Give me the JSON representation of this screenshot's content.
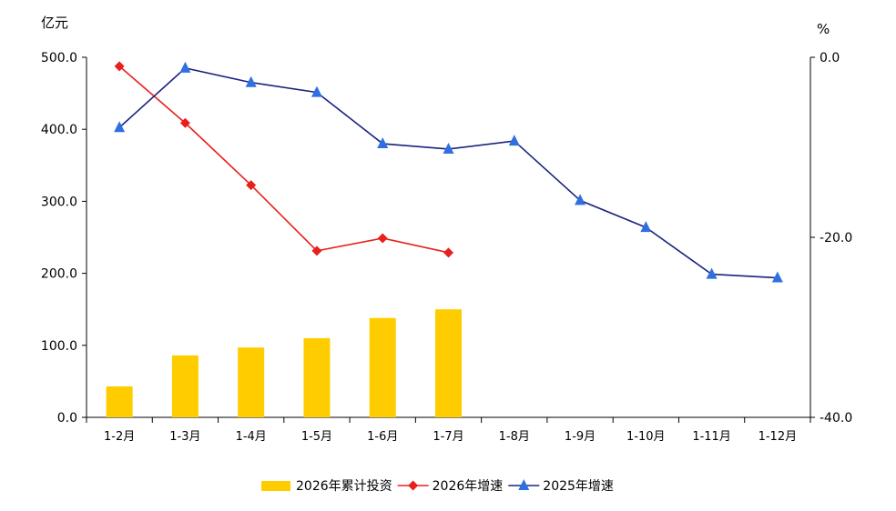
{
  "chart_data": {
    "type": "bar+line",
    "left_axis_unit": "亿元",
    "right_axis_unit": "%",
    "left_ylim": [
      0,
      500
    ],
    "right_ylim": [
      -40,
      0
    ],
    "left_ticks": [
      "0.0",
      "100.0",
      "200.0",
      "300.0",
      "400.0",
      "500.0"
    ],
    "left_tick_values": [
      0,
      100,
      200,
      300,
      400,
      500
    ],
    "right_ticks": [
      "-40.0",
      "-20.0",
      "0.0"
    ],
    "right_tick_values": [
      -40,
      -20,
      0
    ],
    "categories": [
      "1-2月",
      "1-3月",
      "1-4月",
      "1-5月",
      "1-6月",
      "1-7月",
      "1-8月",
      "1-9月",
      "1-10月",
      "1-11月",
      "1-12月"
    ],
    "series": [
      {
        "name": "2026年累计投资",
        "type": "bar",
        "axis": "left",
        "color": "#FFCC00",
        "values": [
          43,
          86,
          97,
          110,
          138,
          150,
          null,
          null,
          null,
          null,
          null
        ]
      },
      {
        "name": "2026年增速",
        "type": "line",
        "axis": "right",
        "color": "#E8201C",
        "marker": "diamond",
        "values": [
          -1.0,
          -7.3,
          -14.2,
          -21.5,
          -20.1,
          -21.7,
          null,
          null,
          null,
          null,
          null
        ]
      },
      {
        "name": "2025年增速",
        "type": "line",
        "axis": "right",
        "color": "#1A237E",
        "marker_color": "#2F6FE0",
        "marker": "triangle",
        "values": [
          -7.8,
          -1.2,
          -2.8,
          -3.9,
          -9.6,
          -10.2,
          -9.3,
          -15.9,
          -18.9,
          -24.1,
          -24.5
        ]
      }
    ],
    "grid": false,
    "legend_position": "bottom"
  }
}
